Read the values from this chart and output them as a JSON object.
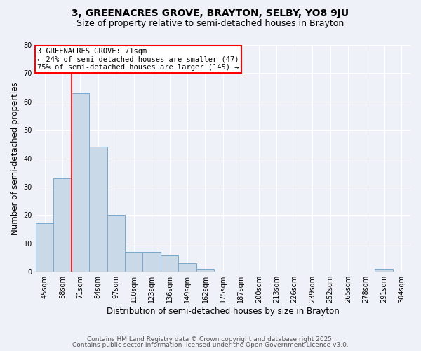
{
  "title": "3, GREENACRES GROVE, BRAYTON, SELBY, YO8 9JU",
  "subtitle": "Size of property relative to semi-detached houses in Brayton",
  "xlabel": "Distribution of semi-detached houses by size in Brayton",
  "ylabel": "Number of semi-detached properties",
  "categories": [
    "45sqm",
    "58sqm",
    "71sqm",
    "84sqm",
    "97sqm",
    "110sqm",
    "123sqm",
    "136sqm",
    "149sqm",
    "162sqm",
    "175sqm",
    "187sqm",
    "200sqm",
    "213sqm",
    "226sqm",
    "239sqm",
    "252sqm",
    "265sqm",
    "278sqm",
    "291sqm",
    "304sqm"
  ],
  "values": [
    17,
    33,
    63,
    44,
    20,
    7,
    7,
    6,
    3,
    1,
    0,
    0,
    0,
    0,
    0,
    0,
    0,
    0,
    0,
    1,
    0
  ],
  "bar_color": "#c9d9e8",
  "bar_edge_color": "#7aa8cc",
  "red_line_index": 1.5,
  "annotation_text": "3 GREENACRES GROVE: 71sqm\n← 24% of semi-detached houses are smaller (47)\n75% of semi-detached houses are larger (145) →",
  "annotation_box_color": "white",
  "annotation_box_edge_color": "red",
  "ylim": [
    0,
    80
  ],
  "yticks": [
    0,
    10,
    20,
    30,
    40,
    50,
    60,
    70,
    80
  ],
  "footer_line1": "Contains HM Land Registry data © Crown copyright and database right 2025.",
  "footer_line2": "Contains public sector information licensed under the Open Government Licence v3.0.",
  "bg_color": "#eef2f8",
  "plot_bg_color": "#eef2f8",
  "grid_color": "white",
  "title_fontsize": 10,
  "subtitle_fontsize": 9,
  "axis_label_fontsize": 8.5,
  "tick_fontsize": 7,
  "annotation_fontsize": 7.5,
  "footer_fontsize": 6.5
}
